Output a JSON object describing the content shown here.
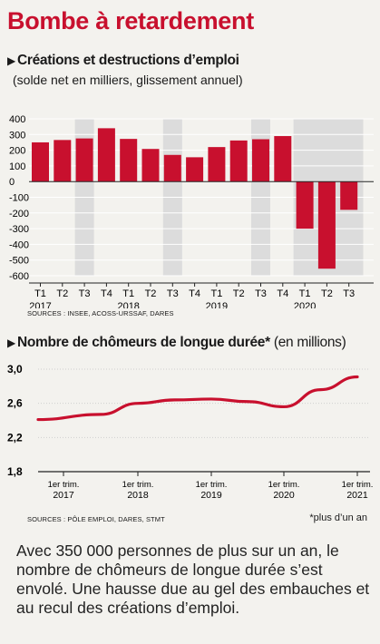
{
  "title": "Bombe à retardement",
  "chart1": {
    "triangle": "▶",
    "heading": "Créations et destructions d’emploi",
    "subheading": "(solde net en milliers, glissement annuel)",
    "source": "SOURCES : INSEE, ACOSS-URSSAF, DARES"
  },
  "chart2": {
    "triangle": "▶",
    "heading": "Nombre de chômeurs de longue durée*",
    "heading_suffix": " (en millions)",
    "source": "SOURCES : PÔLE EMPLOI, DARES, STMT",
    "footnote": "*plus d’un an"
  },
  "paragraph": "Avec 350 000 personnes de plus sur un an, le nombre de chômeurs de longue durée s’est envolé. Une hausse due au gel des embauches et au recul des créations d’emploi.",
  "colors": {
    "accent": "#c8102e",
    "bar": "#c8102e",
    "shade": "#dcdcdc",
    "line": "#c8102e"
  },
  "chart_data": [
    {
      "type": "bar",
      "categories": [
        "T1",
        "T2",
        "T3",
        "T4",
        "T1",
        "T2",
        "T3",
        "T4",
        "T1",
        "T2",
        "T3",
        "T4",
        "T1",
        "T2",
        "T3"
      ],
      "years": [
        "2017",
        "2018",
        "2019",
        "2020"
      ],
      "values": [
        250,
        265,
        275,
        340,
        272,
        208,
        170,
        155,
        220,
        262,
        270,
        290,
        -300,
        -555,
        -180
      ],
      "ylim": [
        -600,
        400
      ],
      "yticks": [
        400,
        300,
        200,
        100,
        0,
        -100,
        -200,
        -300,
        -400,
        -500,
        -600
      ]
    },
    {
      "type": "line",
      "x_labels": [
        {
          "q": "1er trim.",
          "y": "2017"
        },
        {
          "q": "1er trim.",
          "y": "2018"
        },
        {
          "q": "1er trim.",
          "y": "2019"
        },
        {
          "q": "1er trim.",
          "y": "2020"
        },
        {
          "q": "1er trim.",
          "y": "2021"
        }
      ],
      "points": [
        [
          0,
          2.41
        ],
        [
          0.5,
          2.47
        ],
        [
          1,
          2.6
        ],
        [
          1.5,
          2.64
        ],
        [
          2,
          2.65
        ],
        [
          2.5,
          2.62
        ],
        [
          3,
          2.56
        ],
        [
          3.5,
          2.76
        ],
        [
          4,
          2.91
        ]
      ],
      "ylim": [
        1.8,
        3.0
      ],
      "yticks": [
        "3,0",
        "2,6",
        "2,2",
        "1,8"
      ],
      "ytick_values": [
        3.0,
        2.6,
        2.2,
        1.8
      ]
    }
  ]
}
